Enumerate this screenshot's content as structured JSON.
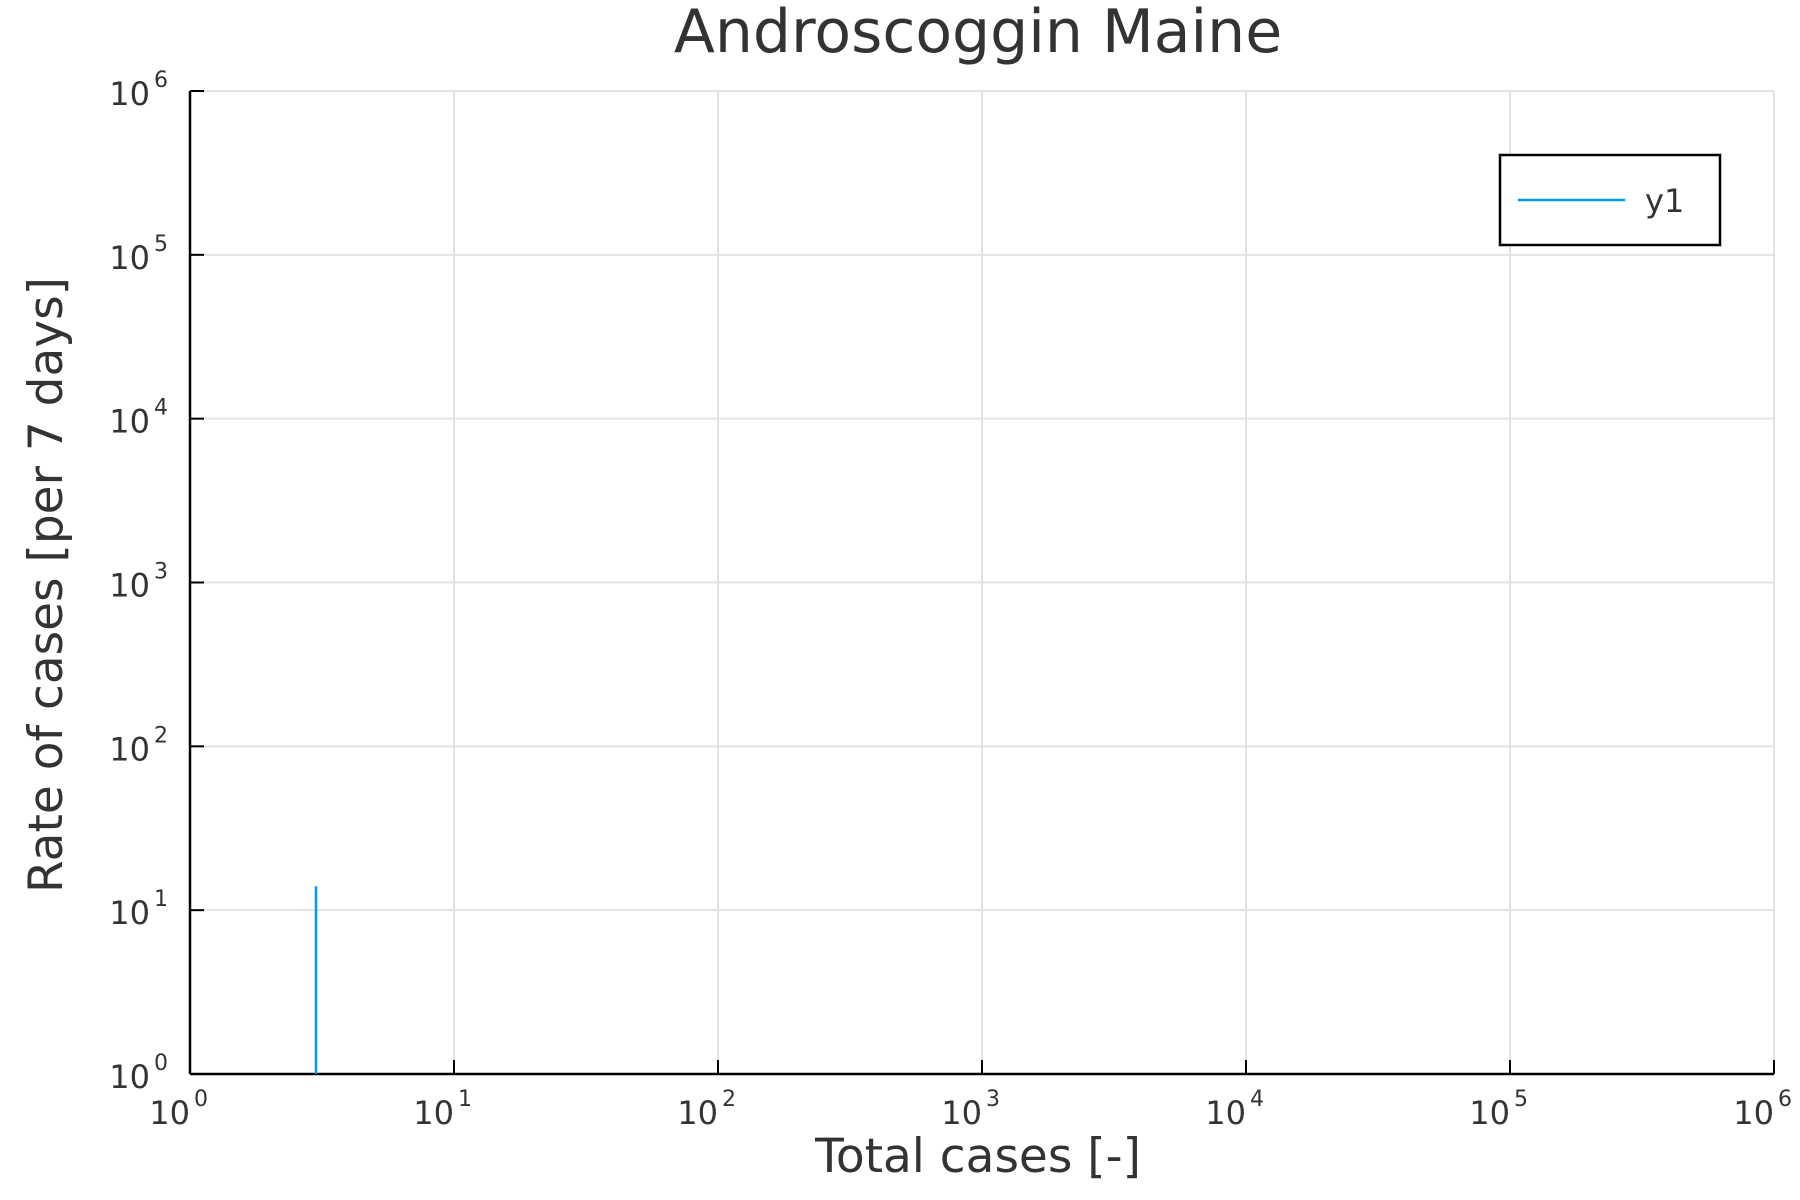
{
  "chart_data": {
    "type": "line",
    "title": "Androscoggin Maine",
    "xlabel": "Total cases [-]",
    "ylabel": "Rate of cases [per 7 days]",
    "xscale": "log",
    "yscale": "log",
    "xlim": [
      1,
      1000000
    ],
    "ylim": [
      1,
      1000000
    ],
    "x_ticks": [
      {
        "base": "10",
        "exp": "0"
      },
      {
        "base": "10",
        "exp": "1"
      },
      {
        "base": "10",
        "exp": "2"
      },
      {
        "base": "10",
        "exp": "3"
      },
      {
        "base": "10",
        "exp": "4"
      },
      {
        "base": "10",
        "exp": "5"
      },
      {
        "base": "10",
        "exp": "6"
      }
    ],
    "y_ticks": [
      {
        "base": "10",
        "exp": "0"
      },
      {
        "base": "10",
        "exp": "1"
      },
      {
        "base": "10",
        "exp": "2"
      },
      {
        "base": "10",
        "exp": "3"
      },
      {
        "base": "10",
        "exp": "4"
      },
      {
        "base": "10",
        "exp": "5"
      },
      {
        "base": "10",
        "exp": "6"
      }
    ],
    "grid": true,
    "legend_position": "top-right",
    "series": [
      {
        "name": "y1",
        "color": "#009af9",
        "points": [
          {
            "x": 3,
            "y": 1
          },
          {
            "x": 3,
            "y": 14
          }
        ]
      }
    ]
  }
}
